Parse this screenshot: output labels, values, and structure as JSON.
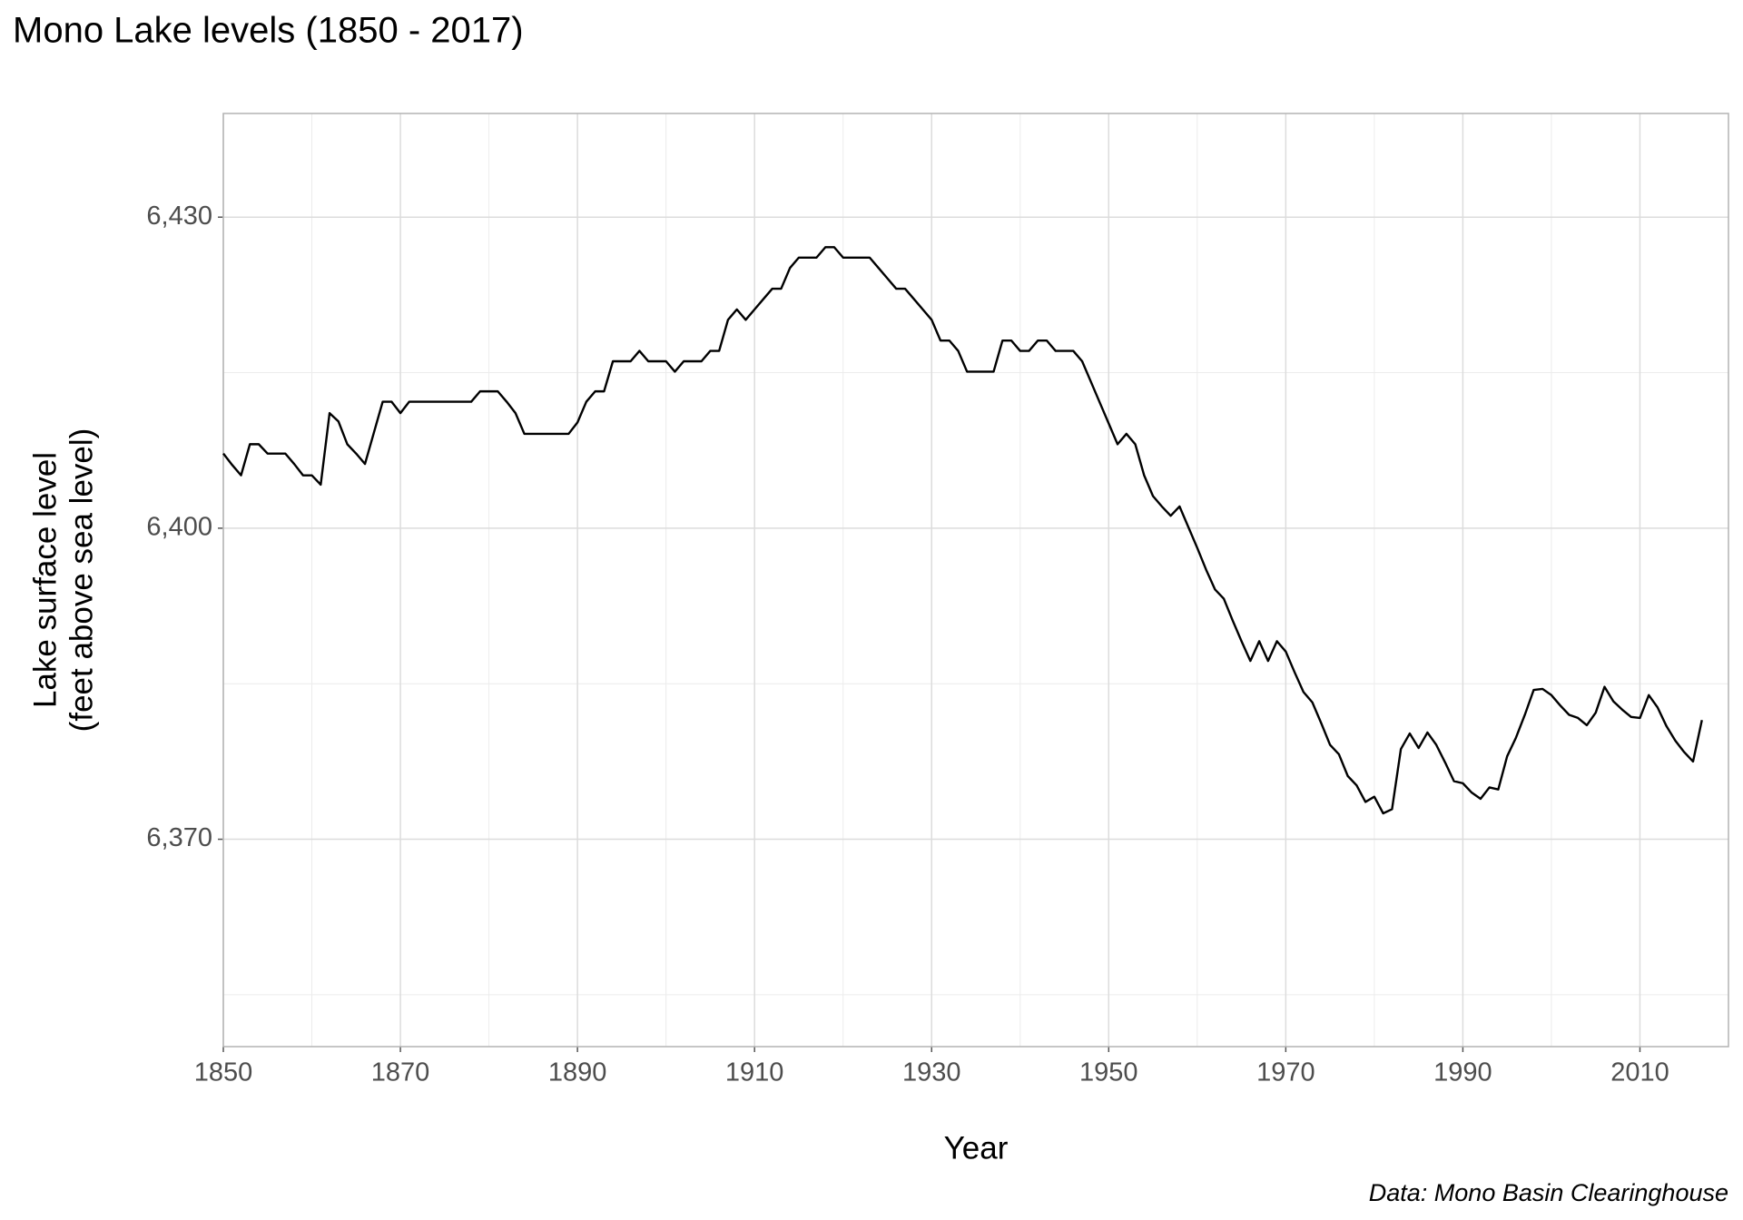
{
  "chart_data": {
    "type": "line",
    "title": "Mono Lake levels (1850 - 2017)",
    "xlabel": "Year",
    "ylabel": [
      "Lake surface level",
      "(feet above sea level)"
    ],
    "caption": "Data: Mono Basin Clearinghouse",
    "color": "#000000",
    "grid": true,
    "xlim": [
      1850,
      2020
    ],
    "ylim": [
      6350,
      6440
    ],
    "xticks": [
      1850,
      1870,
      1890,
      1910,
      1930,
      1950,
      1970,
      1990,
      2010
    ],
    "yticks": [
      {
        "value": 6370,
        "label": "6,370"
      },
      {
        "value": 6400,
        "label": "6,400"
      },
      {
        "value": 6430,
        "label": "6,430"
      }
    ],
    "xminor": [
      1860,
      1880,
      1900,
      1920,
      1940,
      1960,
      1980,
      2000
    ],
    "yminor": [
      6355,
      6385,
      6415
    ],
    "x": [
      1850,
      1851,
      1852,
      1853,
      1854,
      1855,
      1856,
      1857,
      1858,
      1859,
      1860,
      1861,
      1862,
      1863,
      1864,
      1865,
      1866,
      1867,
      1868,
      1869,
      1870,
      1871,
      1872,
      1873,
      1874,
      1875,
      1876,
      1877,
      1878,
      1879,
      1880,
      1881,
      1882,
      1883,
      1884,
      1885,
      1886,
      1887,
      1888,
      1889,
      1890,
      1891,
      1892,
      1893,
      1894,
      1895,
      1896,
      1897,
      1898,
      1899,
      1900,
      1901,
      1902,
      1903,
      1904,
      1905,
      1906,
      1907,
      1908,
      1909,
      1910,
      1911,
      1912,
      1913,
      1914,
      1915,
      1916,
      1917,
      1918,
      1919,
      1920,
      1921,
      1922,
      1923,
      1924,
      1925,
      1926,
      1927,
      1928,
      1929,
      1930,
      1931,
      1932,
      1933,
      1934,
      1935,
      1936,
      1937,
      1938,
      1939,
      1940,
      1941,
      1942,
      1943,
      1944,
      1945,
      1946,
      1947,
      1948,
      1949,
      1950,
      1951,
      1952,
      1953,
      1954,
      1955,
      1956,
      1957,
      1958,
      1959,
      1960,
      1961,
      1962,
      1963,
      1964,
      1965,
      1966,
      1967,
      1968,
      1969,
      1970,
      1971,
      1972,
      1973,
      1974,
      1975,
      1976,
      1977,
      1978,
      1979,
      1980,
      1981,
      1982,
      1983,
      1984,
      1985,
      1986,
      1987,
      1988,
      1989,
      1990,
      1991,
      1992,
      1993,
      1994,
      1995,
      1996,
      1997,
      1998,
      1999,
      2000,
      2001,
      2002,
      2003,
      2004,
      2005,
      2006,
      2007,
      2008,
      2009,
      2010,
      2011,
      2012,
      2013,
      2014,
      2015,
      2016,
      2017
    ],
    "values": [
      6407.2,
      6406.1,
      6405.1,
      6408.1,
      6408.1,
      6407.2,
      6407.2,
      6407.2,
      6406.2,
      6405.1,
      6405.1,
      6404.2,
      6411.1,
      6410.3,
      6408.1,
      6407.2,
      6406.2,
      6409.2,
      6412.2,
      6412.2,
      6411.1,
      6412.2,
      6412.2,
      6412.2,
      6412.2,
      6412.2,
      6412.2,
      6412.2,
      6412.2,
      6413.2,
      6413.2,
      6413.2,
      6412.2,
      6411.1,
      6409.1,
      6409.1,
      6409.1,
      6409.1,
      6409.1,
      6409.1,
      6410.2,
      6412.2,
      6413.2,
      6413.2,
      6416.1,
      6416.1,
      6416.1,
      6417.1,
      6416.1,
      6416.1,
      6416.1,
      6415.1,
      6416.1,
      6416.1,
      6416.1,
      6417.1,
      6417.1,
      6420.1,
      6421.1,
      6420.1,
      6421.1,
      6422.1,
      6423.1,
      6423.1,
      6425.1,
      6426.1,
      6426.1,
      6426.1,
      6427.1,
      6427.1,
      6426.1,
      6426.1,
      6426.1,
      6426.1,
      6425.1,
      6424.1,
      6423.1,
      6423.1,
      6422.1,
      6421.1,
      6420.1,
      6418.1,
      6418.1,
      6417.1,
      6415.1,
      6415.1,
      6415.1,
      6415.1,
      6418.1,
      6418.1,
      6417.1,
      6417.1,
      6418.1,
      6418.1,
      6417.1,
      6417.1,
      6417.1,
      6416.1,
      6414.1,
      6412.1,
      6410.1,
      6408.1,
      6409.1,
      6408.1,
      6405.1,
      6403.1,
      6402.1,
      6401.2,
      6402.1,
      6400.1,
      6398.1,
      6396.0,
      6394.1,
      6393.2,
      6391.1,
      6389.1,
      6387.2,
      6389.1,
      6387.2,
      6389.1,
      6388.1,
      6386.1,
      6384.2,
      6383.2,
      6381.2,
      6379.1,
      6378.2,
      6376.1,
      6375.2,
      6373.6,
      6374.1,
      6372.5,
      6372.9,
      6378.7,
      6380.2,
      6378.8,
      6380.3,
      6379.1,
      6377.4,
      6375.6,
      6375.4,
      6374.5,
      6373.9,
      6375.0,
      6374.8,
      6378.0,
      6379.8,
      6382.0,
      6384.4,
      6384.5,
      6383.9,
      6382.9,
      6382.0,
      6381.7,
      6381.0,
      6382.2,
      6384.7,
      6383.3,
      6382.5,
      6381.8,
      6381.7,
      6383.9,
      6382.7,
      6380.9,
      6379.5,
      6378.4,
      6377.5,
      6381.5
    ]
  }
}
